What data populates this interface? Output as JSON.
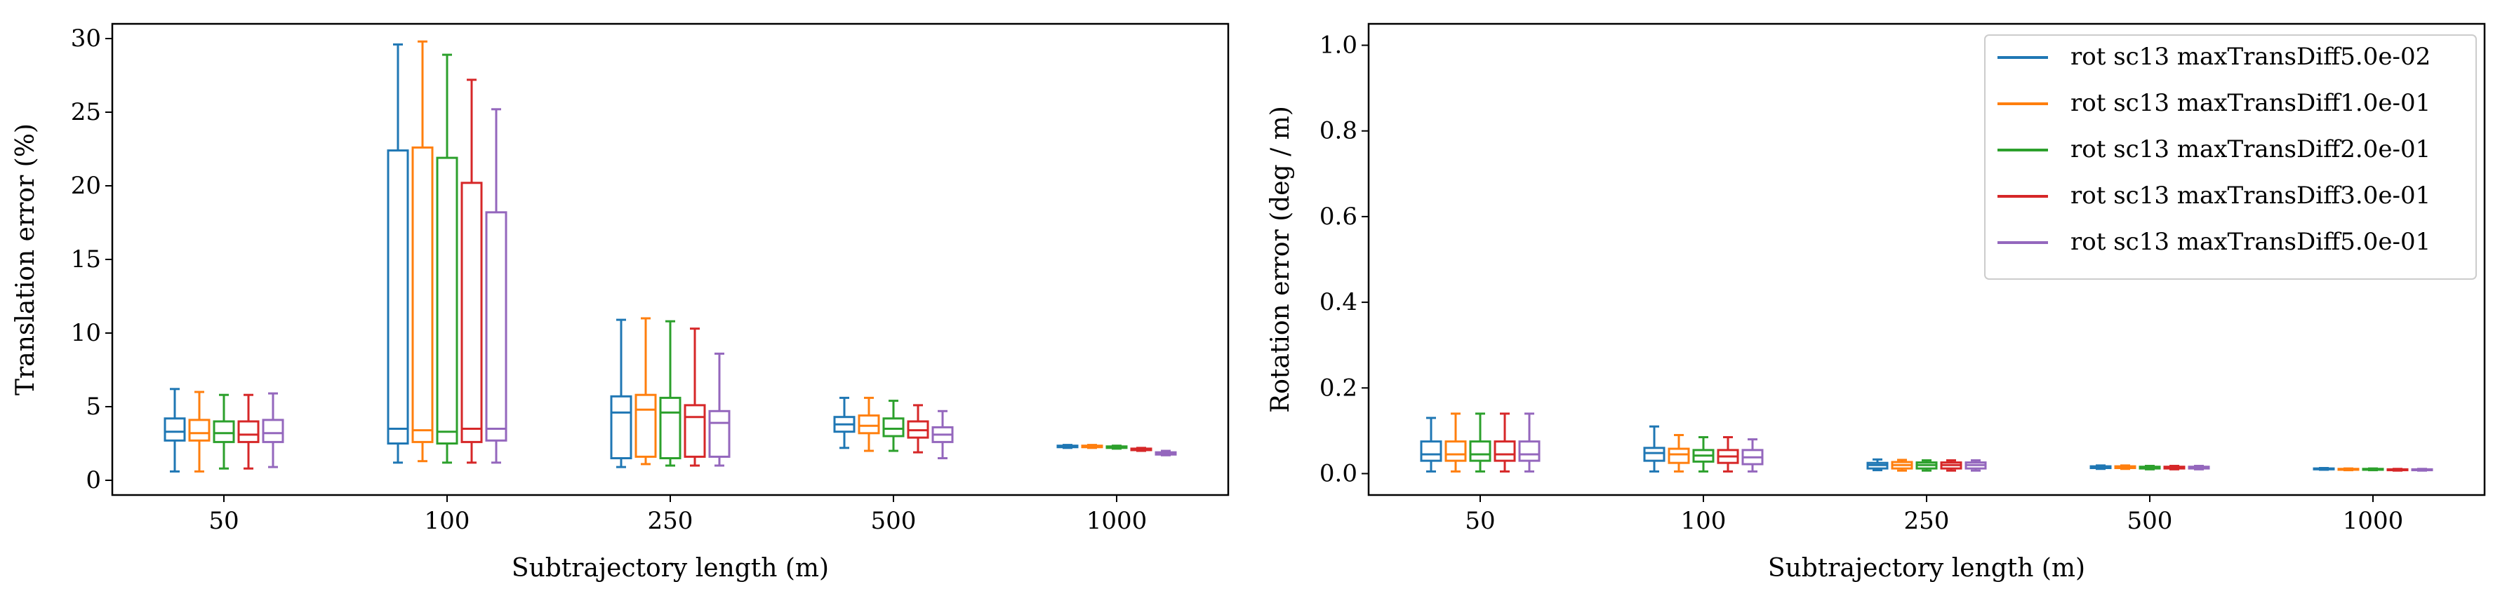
{
  "colors": [
    "#1f77b4",
    "#ff7f0e",
    "#2ca02c",
    "#d62728",
    "#9467bd"
  ],
  "legend_location": "top-right of right panel",
  "chart_data": [
    {
      "type": "boxplot",
      "xlabel": "Subtrajectory length (m)",
      "ylabel": "Translation error (%)",
      "ylim": [
        -1,
        31
      ],
      "yticks": [
        "0",
        "5",
        "10",
        "15",
        "20",
        "25",
        "30"
      ],
      "categories": [
        "50",
        "100",
        "250",
        "500",
        "1000"
      ],
      "grid": false,
      "series": [
        {
          "name": "rot sc13 maxTransDiff5.0e-02",
          "boxes": [
            {
              "whislo": 0.6,
              "q1": 2.7,
              "med": 3.3,
              "q3": 4.2,
              "whishi": 6.2
            },
            {
              "whislo": 1.2,
              "q1": 2.5,
              "med": 3.5,
              "q3": 22.4,
              "whishi": 29.6
            },
            {
              "whislo": 0.9,
              "q1": 1.5,
              "med": 4.6,
              "q3": 5.7,
              "whishi": 10.9
            },
            {
              "whislo": 2.2,
              "q1": 3.3,
              "med": 3.8,
              "q3": 4.3,
              "whishi": 5.6
            },
            {
              "whislo": 2.2,
              "q1": 2.25,
              "med": 2.3,
              "q3": 2.35,
              "whishi": 2.4
            }
          ]
        },
        {
          "name": "rot sc13 maxTransDiff1.0e-01",
          "boxes": [
            {
              "whislo": 0.6,
              "q1": 2.7,
              "med": 3.2,
              "q3": 4.1,
              "whishi": 6.0
            },
            {
              "whislo": 1.3,
              "q1": 2.6,
              "med": 3.4,
              "q3": 22.6,
              "whishi": 29.8
            },
            {
              "whislo": 1.1,
              "q1": 1.6,
              "med": 4.8,
              "q3": 5.8,
              "whishi": 11.0
            },
            {
              "whislo": 2.0,
              "q1": 3.2,
              "med": 3.7,
              "q3": 4.4,
              "whishi": 5.6
            },
            {
              "whislo": 2.2,
              "q1": 2.25,
              "med": 2.3,
              "q3": 2.35,
              "whishi": 2.4
            }
          ]
        },
        {
          "name": "rot sc13 maxTransDiff2.0e-01",
          "boxes": [
            {
              "whislo": 0.8,
              "q1": 2.6,
              "med": 3.2,
              "q3": 4.0,
              "whishi": 5.8
            },
            {
              "whislo": 1.2,
              "q1": 2.5,
              "med": 3.3,
              "q3": 21.9,
              "whishi": 28.9
            },
            {
              "whislo": 1.0,
              "q1": 1.5,
              "med": 4.6,
              "q3": 5.6,
              "whishi": 10.8
            },
            {
              "whislo": 2.0,
              "q1": 3.0,
              "med": 3.5,
              "q3": 4.2,
              "whishi": 5.4
            },
            {
              "whislo": 2.15,
              "q1": 2.2,
              "med": 2.25,
              "q3": 2.3,
              "whishi": 2.35
            }
          ]
        },
        {
          "name": "rot sc13 maxTransDiff3.0e-01",
          "boxes": [
            {
              "whislo": 0.8,
              "q1": 2.6,
              "med": 3.1,
              "q3": 4.0,
              "whishi": 5.8
            },
            {
              "whislo": 1.2,
              "q1": 2.6,
              "med": 3.5,
              "q3": 20.2,
              "whishi": 27.2
            },
            {
              "whislo": 1.0,
              "q1": 1.6,
              "med": 4.3,
              "q3": 5.1,
              "whishi": 10.3
            },
            {
              "whislo": 1.9,
              "q1": 2.9,
              "med": 3.4,
              "q3": 4.0,
              "whishi": 5.1
            },
            {
              "whislo": 2.0,
              "q1": 2.05,
              "med": 2.1,
              "q3": 2.15,
              "whishi": 2.2
            }
          ]
        },
        {
          "name": "rot sc13 maxTransDiff5.0e-01",
          "boxes": [
            {
              "whislo": 0.9,
              "q1": 2.6,
              "med": 3.2,
              "q3": 4.1,
              "whishi": 5.9
            },
            {
              "whislo": 1.2,
              "q1": 2.7,
              "med": 3.5,
              "q3": 18.2,
              "whishi": 25.2
            },
            {
              "whislo": 1.0,
              "q1": 1.6,
              "med": 3.9,
              "q3": 4.7,
              "whishi": 8.6
            },
            {
              "whislo": 1.5,
              "q1": 2.6,
              "med": 3.1,
              "q3": 3.6,
              "whishi": 4.7
            },
            {
              "whislo": 1.7,
              "q1": 1.75,
              "med": 1.8,
              "q3": 1.9,
              "whishi": 2.0
            }
          ]
        }
      ]
    },
    {
      "type": "boxplot",
      "xlabel": "Subtrajectory length (m)",
      "ylabel": "Rotation error (deg / m)",
      "ylim": [
        -0.05,
        1.05
      ],
      "yticks": [
        "0.0",
        "0.2",
        "0.4",
        "0.6",
        "0.8",
        "1.0"
      ],
      "categories": [
        "50",
        "100",
        "250",
        "500",
        "1000"
      ],
      "grid": false,
      "series": [
        {
          "name": "rot sc13 maxTransDiff5.0e-02",
          "boxes": [
            {
              "whislo": 0.005,
              "q1": 0.03,
              "med": 0.045,
              "q3": 0.075,
              "whishi": 0.13
            },
            {
              "whislo": 0.005,
              "q1": 0.03,
              "med": 0.048,
              "q3": 0.06,
              "whishi": 0.11
            },
            {
              "whislo": 0.008,
              "q1": 0.012,
              "med": 0.02,
              "q3": 0.025,
              "whishi": 0.033
            },
            {
              "whislo": 0.011,
              "q1": 0.013,
              "med": 0.015,
              "q3": 0.017,
              "whishi": 0.019
            },
            {
              "whislo": 0.009,
              "q1": 0.01,
              "med": 0.011,
              "q3": 0.012,
              "whishi": 0.013
            }
          ]
        },
        {
          "name": "rot sc13 maxTransDiff1.0e-01",
          "boxes": [
            {
              "whislo": 0.005,
              "q1": 0.03,
              "med": 0.045,
              "q3": 0.075,
              "whishi": 0.14
            },
            {
              "whislo": 0.005,
              "q1": 0.025,
              "med": 0.045,
              "q3": 0.058,
              "whishi": 0.09
            },
            {
              "whislo": 0.007,
              "q1": 0.012,
              "med": 0.02,
              "q3": 0.027,
              "whishi": 0.032
            },
            {
              "whislo": 0.011,
              "q1": 0.013,
              "med": 0.015,
              "q3": 0.017,
              "whishi": 0.019
            },
            {
              "whislo": 0.008,
              "q1": 0.009,
              "med": 0.01,
              "q3": 0.011,
              "whishi": 0.012
            }
          ]
        },
        {
          "name": "rot sc13 maxTransDiff2.0e-01",
          "boxes": [
            {
              "whislo": 0.005,
              "q1": 0.03,
              "med": 0.045,
              "q3": 0.075,
              "whishi": 0.14
            },
            {
              "whislo": 0.005,
              "q1": 0.028,
              "med": 0.042,
              "q3": 0.055,
              "whishi": 0.085
            },
            {
              "whislo": 0.007,
              "q1": 0.012,
              "med": 0.02,
              "q3": 0.026,
              "whishi": 0.031
            },
            {
              "whislo": 0.01,
              "q1": 0.012,
              "med": 0.014,
              "q3": 0.016,
              "whishi": 0.018
            },
            {
              "whislo": 0.008,
              "q1": 0.009,
              "med": 0.01,
              "q3": 0.011,
              "whishi": 0.012
            }
          ]
        },
        {
          "name": "rot sc13 maxTransDiff3.0e-01",
          "boxes": [
            {
              "whislo": 0.005,
              "q1": 0.03,
              "med": 0.045,
              "q3": 0.075,
              "whishi": 0.14
            },
            {
              "whislo": 0.005,
              "q1": 0.025,
              "med": 0.04,
              "q3": 0.055,
              "whishi": 0.085
            },
            {
              "whislo": 0.007,
              "q1": 0.012,
              "med": 0.02,
              "q3": 0.026,
              "whishi": 0.031
            },
            {
              "whislo": 0.01,
              "q1": 0.012,
              "med": 0.014,
              "q3": 0.016,
              "whishi": 0.018
            },
            {
              "whislo": 0.007,
              "q1": 0.008,
              "med": 0.009,
              "q3": 0.01,
              "whishi": 0.011
            }
          ]
        },
        {
          "name": "rot sc13 maxTransDiff5.0e-01",
          "boxes": [
            {
              "whislo": 0.005,
              "q1": 0.03,
              "med": 0.045,
              "q3": 0.075,
              "whishi": 0.14
            },
            {
              "whislo": 0.005,
              "q1": 0.022,
              "med": 0.038,
              "q3": 0.055,
              "whishi": 0.08
            },
            {
              "whislo": 0.007,
              "q1": 0.012,
              "med": 0.02,
              "q3": 0.026,
              "whishi": 0.031
            },
            {
              "whislo": 0.01,
              "q1": 0.012,
              "med": 0.014,
              "q3": 0.016,
              "whishi": 0.018
            },
            {
              "whislo": 0.007,
              "q1": 0.008,
              "med": 0.009,
              "q3": 0.01,
              "whishi": 0.011
            }
          ]
        }
      ]
    }
  ]
}
